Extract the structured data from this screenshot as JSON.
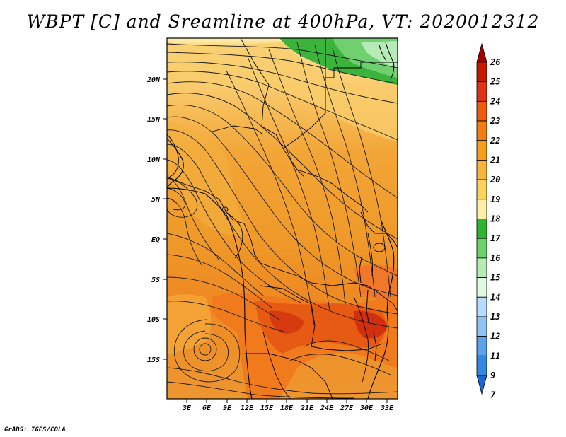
{
  "title": "WBPT [C] and Sreamline at 400hPa, VT: 2020012312",
  "footer": "GrADS: IGES/COLA",
  "map": {
    "lat_ticks": [
      "20N",
      "15N",
      "10N",
      "5N",
      "EQ",
      "5S",
      "10S",
      "15S"
    ],
    "lon_ticks": [
      "3E",
      "6E",
      "9E",
      "12E",
      "15E",
      "18E",
      "21E",
      "24E",
      "27E",
      "30E",
      "33E"
    ]
  },
  "colorbar": {
    "levels": [
      "26",
      "25",
      "24",
      "23",
      "22",
      "21",
      "20",
      "19",
      "18",
      "17",
      "16",
      "15",
      "14",
      "13",
      "12",
      "11",
      "9",
      "7"
    ],
    "colors": [
      "#a00000",
      "#c41a00",
      "#e03214",
      "#ee5a10",
      "#f27d12",
      "#f59e1c",
      "#f8b43c",
      "#fbd25e",
      "#fdf0a6",
      "#2fb42f",
      "#6ad46a",
      "#b4ecb4",
      "#e0fae0",
      "#b8dcff",
      "#8fc3f5",
      "#5aa3ec",
      "#3587e2",
      "#1e64d2"
    ]
  }
}
